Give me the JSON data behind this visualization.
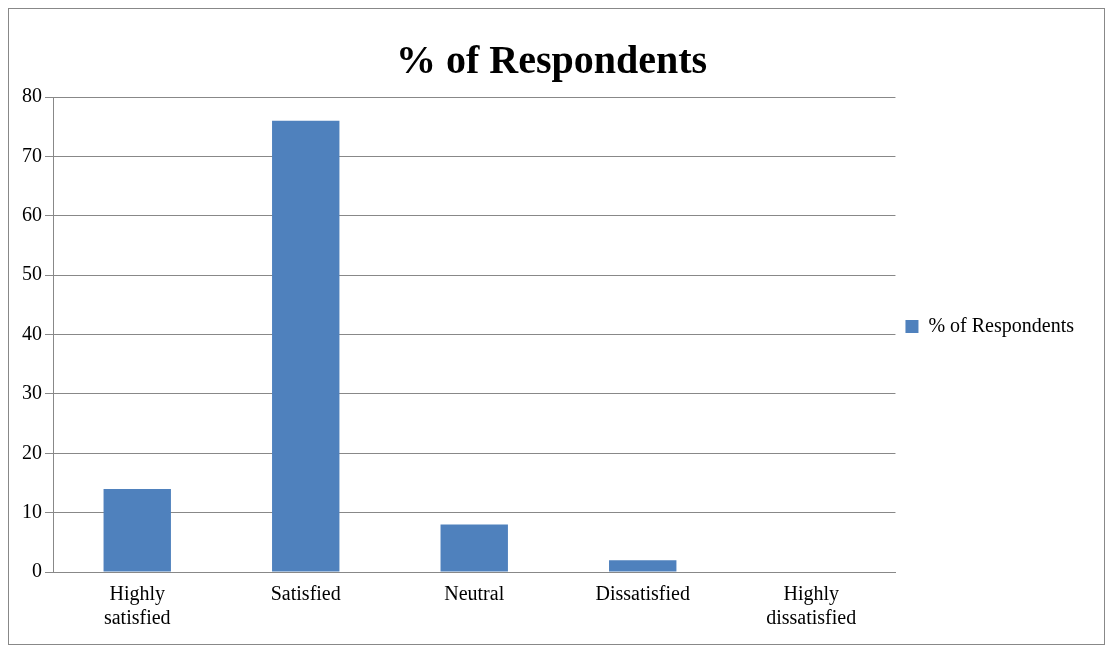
{
  "chart_data": {
    "type": "bar",
    "title": "% of Respondents",
    "categories": [
      "Highly satisfied",
      "Satisfied",
      "Neutral",
      "Dissatisfied",
      "Highly dissatisfied"
    ],
    "series": [
      {
        "name": "% of Respondents",
        "color": "#4f81bd",
        "values": [
          14,
          76,
          8,
          2,
          0
        ]
      }
    ],
    "ylim": [
      0,
      80
    ],
    "yticks": [
      0,
      10,
      20,
      30,
      40,
      50,
      60,
      70,
      80
    ],
    "grid": "y",
    "legend": "right"
  }
}
